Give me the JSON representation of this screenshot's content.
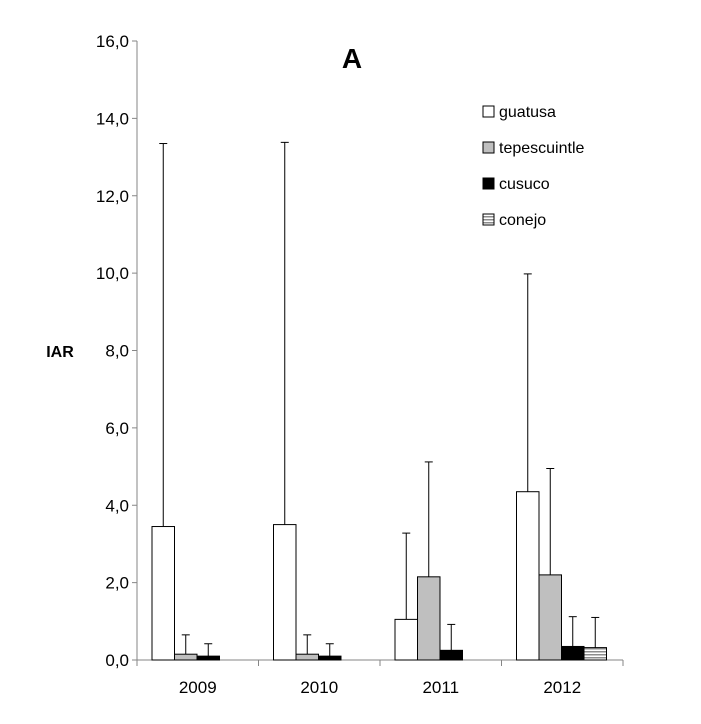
{
  "chart_data": {
    "type": "bar",
    "title": "A",
    "xlabel": "",
    "ylabel": "IAR",
    "ylim": [
      0,
      16
    ],
    "yticks": [
      "0,0",
      "2,0",
      "4,0",
      "6,0",
      "8,0",
      "10,0",
      "12,0",
      "14,0",
      "16,0"
    ],
    "categories": [
      "2009",
      "2010",
      "2011",
      "2012"
    ],
    "grid": false,
    "legend_position": "top-right",
    "series": [
      {
        "name": "guatusa",
        "fill": "#ffffff",
        "pattern": "solid",
        "values": [
          3.45,
          3.5,
          1.05,
          4.35
        ],
        "error_upper": [
          13.35,
          13.38,
          3.28,
          9.98
        ]
      },
      {
        "name": "tepescuintle",
        "fill": "#bfbfbf",
        "pattern": "solid",
        "values": [
          0.15,
          0.15,
          2.15,
          2.2
        ],
        "error_upper": [
          0.65,
          0.65,
          5.12,
          4.95
        ]
      },
      {
        "name": "cusuco",
        "fill": "#000000",
        "pattern": "solid",
        "values": [
          0.1,
          0.1,
          0.25,
          0.35
        ],
        "error_upper": [
          0.42,
          0.42,
          0.92,
          1.12
        ]
      },
      {
        "name": "conejo",
        "fill": "#bfbfbf",
        "pattern": "horizontal-stripes",
        "values": [
          null,
          null,
          null,
          0.32
        ],
        "error_upper": [
          null,
          null,
          null,
          1.1
        ]
      }
    ]
  }
}
